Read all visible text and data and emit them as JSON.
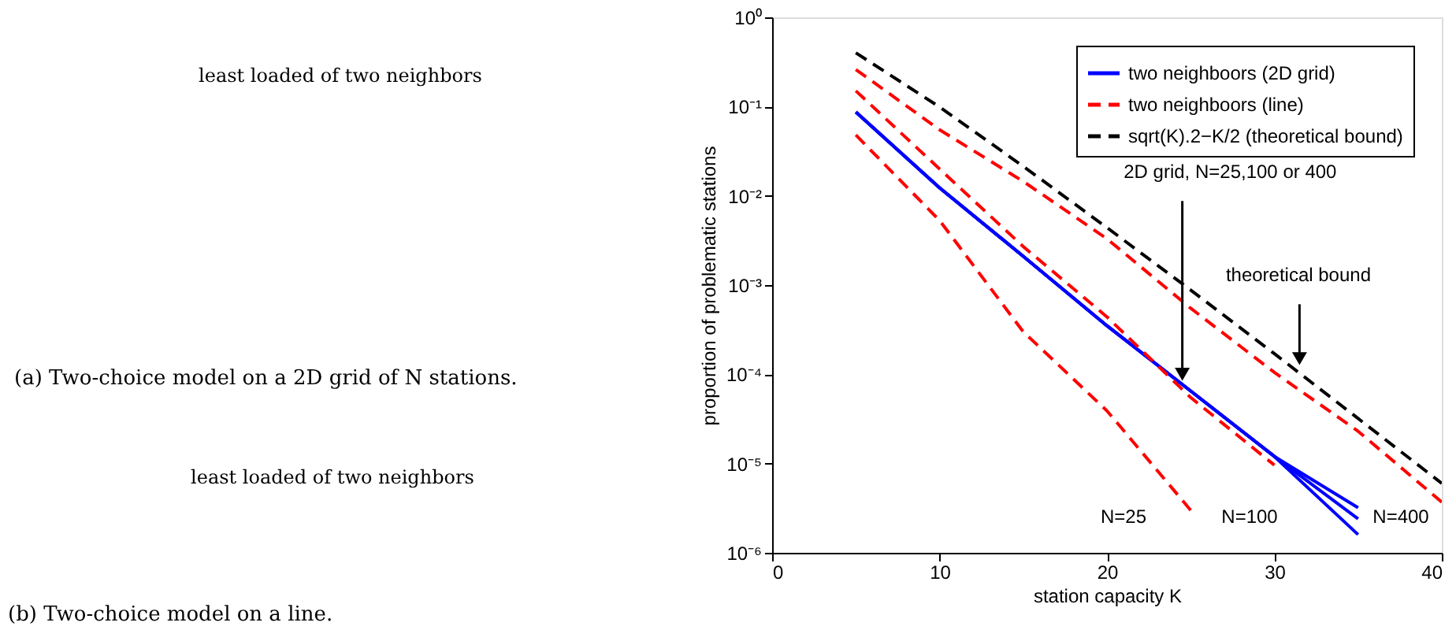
{
  "chart_data": {
    "type": "line",
    "xlabel": "station capacity K",
    "ylabel": "proportion of problematic stations",
    "x": [
      5,
      10,
      15,
      20,
      25,
      30,
      35,
      40
    ],
    "series": [
      {
        "name": "two neighboors (2D grid)",
        "color": "#0000ff",
        "line_style": "solid",
        "values": [
          0.087,
          0.0123,
          0.0021,
          0.00035,
          6.5e-05,
          1.2e-05,
          3.2e-06,
          null
        ]
      },
      {
        "color": "#0000ff",
        "line_style": "solid",
        "values": [
          0.087,
          0.0123,
          0.0021,
          0.00035,
          6.5e-05,
          1.2e-05,
          2.4e-06,
          null
        ]
      },
      {
        "color": "#0000ff",
        "line_style": "solid",
        "values": [
          0.087,
          0.0123,
          0.0021,
          0.00035,
          6.5e-05,
          1.2e-05,
          1.6e-06,
          null
        ]
      },
      {
        "name": "two neighboors (line)",
        "color": "#ff0000",
        "line_style": "dashed",
        "values": [
          0.048,
          0.0053,
          0.0003,
          3.9e-05,
          3e-06,
          null,
          null,
          null
        ]
      },
      {
        "color": "#ff0000",
        "line_style": "dashed",
        "values": [
          0.15,
          0.02,
          0.0027,
          0.00044,
          5.5e-05,
          9.6e-06,
          null,
          null
        ]
      },
      {
        "color": "#ff0000",
        "line_style": "dashed",
        "values": [
          0.26,
          0.055,
          0.0145,
          0.0033,
          0.00055,
          0.000105,
          2.3e-05,
          3.7e-06
        ]
      },
      {
        "name": "sqrt(K).2−K/2 (theoretical bound)",
        "color": "#000000",
        "line_style": "dashed",
        "values": [
          0.4,
          0.099,
          0.0214,
          0.0044,
          0.00088,
          0.00017,
          3.2e-05,
          6e-06
        ]
      }
    ],
    "log": "y",
    "xlim": [
      0,
      40
    ],
    "xticks": [
      0,
      10,
      20,
      30,
      40
    ],
    "ylim": [
      1e-06,
      1
    ],
    "yticks": [
      {
        "value": 1e-06,
        "label": "10⁻⁶"
      },
      {
        "value": 1e-05,
        "label": "10⁻⁵"
      },
      {
        "value": 0.0001,
        "label": "10⁻⁴"
      },
      {
        "value": 0.001,
        "label": "10⁻³"
      },
      {
        "value": 0.01,
        "label": "10⁻²"
      },
      {
        "value": 0.1,
        "label": "10⁻¹"
      },
      {
        "value": 1,
        "label": "10⁰"
      }
    ],
    "grid": false,
    "legend": "top right",
    "marker": "none",
    "annotations": [
      "least loaded of two neighbors",
      "(a) Two-choice model on a 2D grid of N stations.",
      "least loaded of two neighbors",
      "(b) Two-choice model on a line.",
      {
        "text": "2D grid, N=25,100 or 400",
        "x": 24.5,
        "y": 0.0001
      },
      {
        "text": "theoretical bound",
        "x": 31.5,
        "y": 0.00015
      },
      "N=25",
      "N=100",
      "N=400"
    ]
  }
}
